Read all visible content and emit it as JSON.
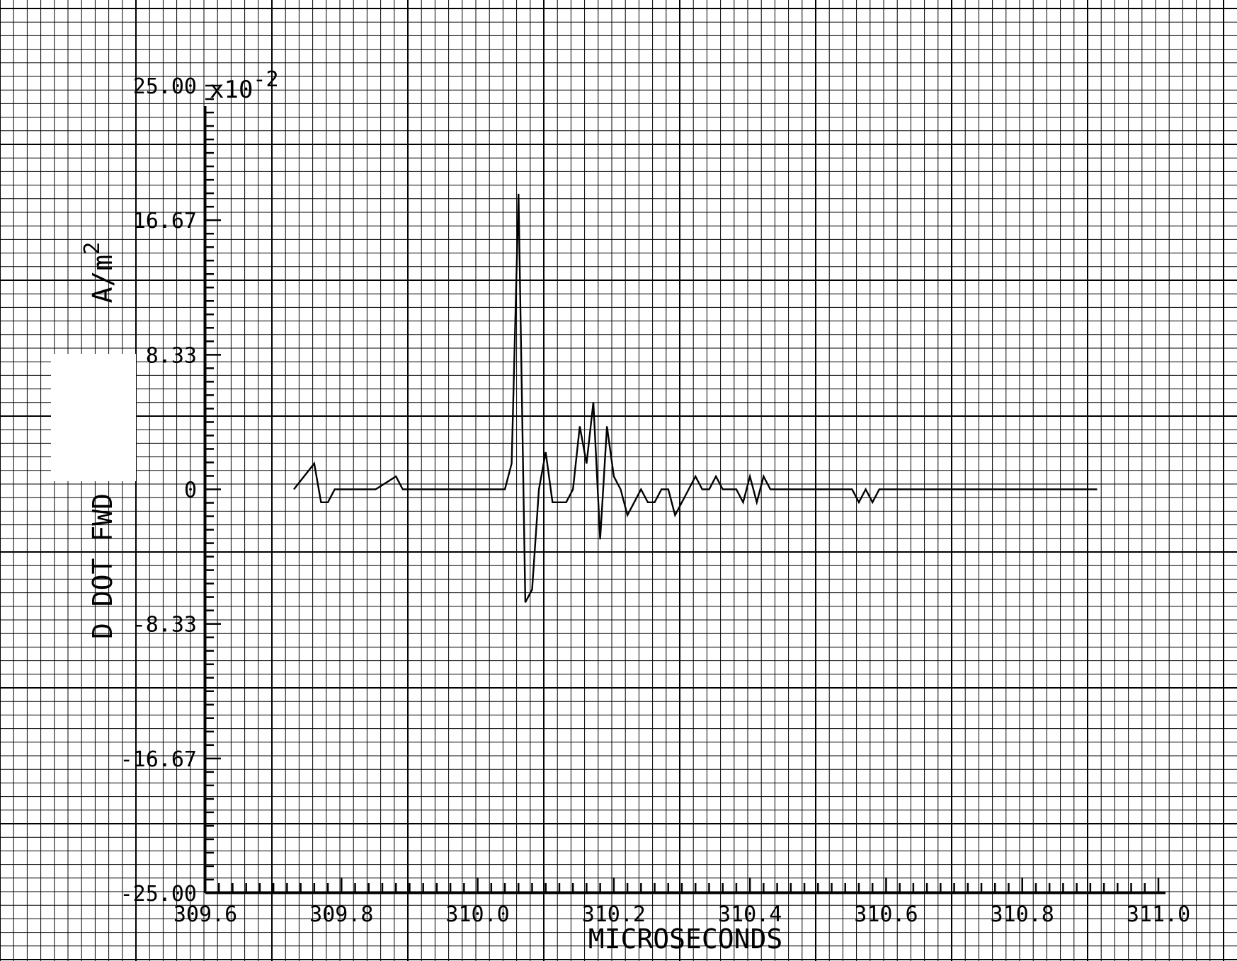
{
  "chart_data": {
    "type": "line",
    "title": "",
    "xlabel": "MICROSECONDS",
    "ylabel": "D DOT FWD",
    "ylabel_unit": "A/m",
    "ylabel_unit_exp": "2",
    "y_multiplier": "x10",
    "y_multiplier_exp": "-2",
    "xlim": [
      309.6,
      311.0
    ],
    "ylim": [
      -25.0,
      25.0
    ],
    "x_ticks": [
      "309.6",
      "309.8",
      "310.0",
      "310.2",
      "310.4",
      "310.6",
      "310.8",
      "311.0"
    ],
    "x_tick_values": [
      309.6,
      309.8,
      310.0,
      310.2,
      310.4,
      310.6,
      310.8,
      311.0
    ],
    "y_ticks": [
      "-25.00",
      "-16.67",
      "-8.33",
      "0",
      "8.33",
      "16.67",
      "25.00"
    ],
    "y_tick_values": [
      -25.0,
      -16.67,
      -8.33,
      0,
      8.33,
      16.67,
      25.0
    ],
    "grid": true,
    "legend": "none",
    "series": [
      {
        "x": [
          309.73,
          309.76,
          309.77,
          309.78,
          309.79,
          309.8,
          309.85,
          309.88,
          309.89,
          309.9,
          310.04,
          310.05,
          310.06,
          310.07,
          310.08,
          310.09,
          310.1,
          310.11,
          310.12,
          310.13,
          310.14,
          310.15,
          310.16,
          310.17,
          310.18,
          310.19,
          310.2,
          310.21,
          310.22,
          310.23,
          310.24,
          310.25,
          310.26,
          310.27,
          310.28,
          310.29,
          310.3,
          310.31,
          310.32,
          310.33,
          310.34,
          310.35,
          310.36,
          310.37,
          310.38,
          310.39,
          310.4,
          310.41,
          310.42,
          310.43,
          310.44,
          310.45,
          310.46,
          310.55,
          310.56,
          310.57,
          310.58,
          310.59,
          310.6,
          310.91
        ],
        "y": [
          0,
          1.6,
          -0.8,
          -0.8,
          0,
          0,
          0,
          0.8,
          0,
          0,
          0,
          1.6,
          18.3,
          -7.0,
          -6.2,
          0,
          2.3,
          -0.8,
          -0.8,
          -0.8,
          0,
          3.9,
          1.6,
          5.4,
          -3.1,
          3.9,
          0.8,
          0,
          -1.6,
          -0.8,
          0,
          -0.8,
          -0.8,
          0,
          0,
          -1.6,
          -0.8,
          0,
          0.8,
          0,
          0,
          0.8,
          0,
          0,
          0,
          -0.8,
          0.8,
          -0.8,
          0.8,
          0,
          0,
          0,
          0,
          0,
          -0.8,
          0,
          -0.8,
          0,
          0,
          0
        ]
      }
    ]
  }
}
